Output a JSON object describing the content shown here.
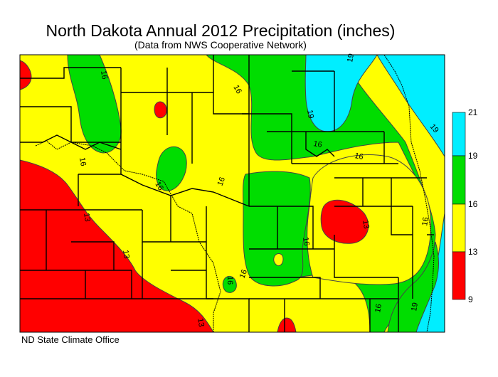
{
  "header": {
    "title": "North Dakota Annual 2012 Precipitation (inches)",
    "subtitle": "(Data from NWS Cooperative Network)"
  },
  "footer": {
    "credit": "ND State Climate Office"
  },
  "colors": {
    "red": "#ff0000",
    "yellow": "#ffff00",
    "green": "#00dd00",
    "cyan": "#00eeff",
    "contour": "#444444",
    "border": "#000000"
  },
  "legend": {
    "bins": [
      {
        "from": 9,
        "to": 13,
        "color": "#ff0000"
      },
      {
        "from": 13,
        "to": 16,
        "color": "#ffff00"
      },
      {
        "from": 16,
        "to": 19,
        "color": "#00dd00"
      },
      {
        "from": 19,
        "to": 21,
        "color": "#00eeff"
      }
    ],
    "tick_labels": [
      "21",
      "19",
      "16",
      "13",
      "9"
    ]
  },
  "contour_labels": {
    "c16a": "16",
    "c16b": "16",
    "c16c": "16",
    "c16d": "16",
    "c16e": "16",
    "c16f": "16",
    "c16g": "16",
    "c16h": "16",
    "c16i": "16",
    "c16j": "16",
    "c16k": "16",
    "c16l": "16",
    "c13a": "13",
    "c13b": "13",
    "c13c": "13",
    "c13d": "13",
    "c19a": "19",
    "c19b": "19",
    "c19c": "19",
    "c19d": "19"
  }
}
